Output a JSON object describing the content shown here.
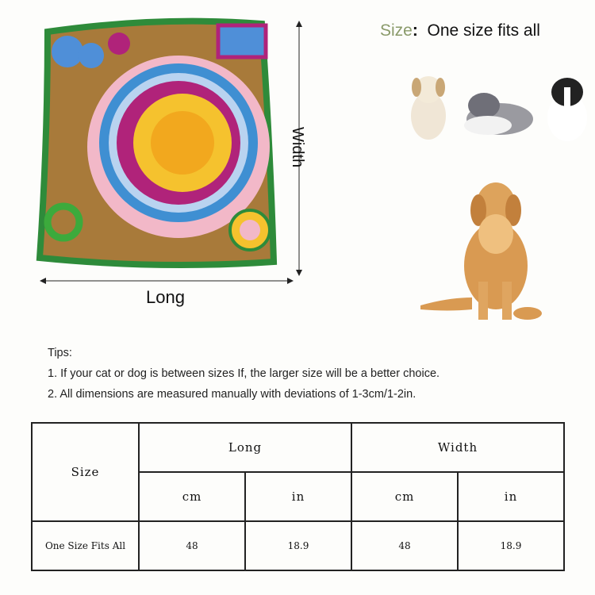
{
  "size_line": {
    "label": "Size",
    "separator": ":",
    "value": "One size fits all"
  },
  "product_dims": {
    "long_label": "Long",
    "width_label": "Width"
  },
  "tips": {
    "title": "Tips:",
    "items": [
      "1. If your cat or dog is between sizes If, the larger size will be a better choice.",
      "2. All dimensions are measured manually with deviations of 1-3cm/1-2in."
    ]
  },
  "table": {
    "size_header": "Size",
    "groups": [
      "Long",
      "Width"
    ],
    "units": [
      "cm",
      "in",
      "cm",
      "in"
    ],
    "rows": [
      {
        "size": "One Size Fits All",
        "values": [
          "48",
          "18.9",
          "48",
          "18.9"
        ]
      }
    ]
  },
  "colors": {
    "size_label": "#8a9a6a",
    "mat_border": "#2e8b3a",
    "mat_base": "#a87a3a"
  },
  "images": [
    "snuffle-mat-photo",
    "puppy-1",
    "puppy-2",
    "puppy-3",
    "golden-retriever"
  ]
}
